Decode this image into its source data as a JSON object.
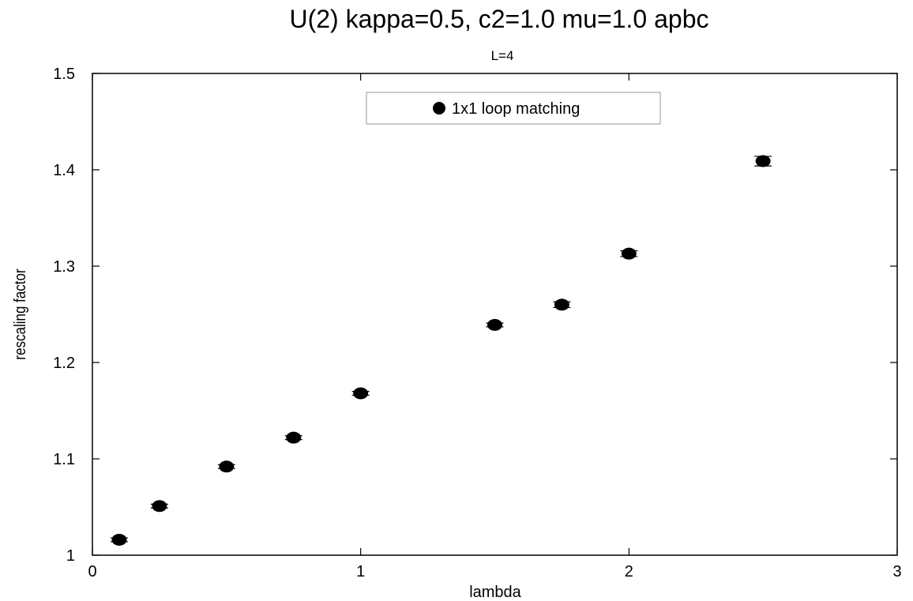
{
  "chart_data": {
    "type": "scatter",
    "title": "U(2) kappa=0.5, c2=1.0 mu=1.0 apbc",
    "subtitle": "L=4",
    "xlabel": "lambda",
    "ylabel": "rescaling factor",
    "xlim": [
      0,
      3
    ],
    "ylim": [
      1,
      1.5
    ],
    "x_ticks": [
      0,
      1,
      2,
      3
    ],
    "y_ticks": [
      1,
      1.1,
      1.2,
      1.3,
      1.4,
      1.5
    ],
    "x_tick_labels": [
      "0",
      "1",
      "2",
      "3"
    ],
    "y_tick_labels": [
      "1",
      "1.1",
      "1.2",
      "1.3",
      "1.4",
      "1.5"
    ],
    "grid": false,
    "legend_position": "top-center",
    "series": [
      {
        "name": "1x1 loop matching",
        "color": "#000000",
        "marker": "filled-circle",
        "x": [
          0.1,
          0.25,
          0.5,
          0.75,
          1.0,
          1.5,
          1.75,
          2.0,
          2.5
        ],
        "y": [
          1.016,
          1.051,
          1.092,
          1.122,
          1.168,
          1.239,
          1.26,
          1.313,
          1.409
        ],
        "yerr": [
          0.002,
          0.002,
          0.002,
          0.002,
          0.002,
          0.002,
          0.003,
          0.003,
          0.005
        ]
      }
    ]
  }
}
